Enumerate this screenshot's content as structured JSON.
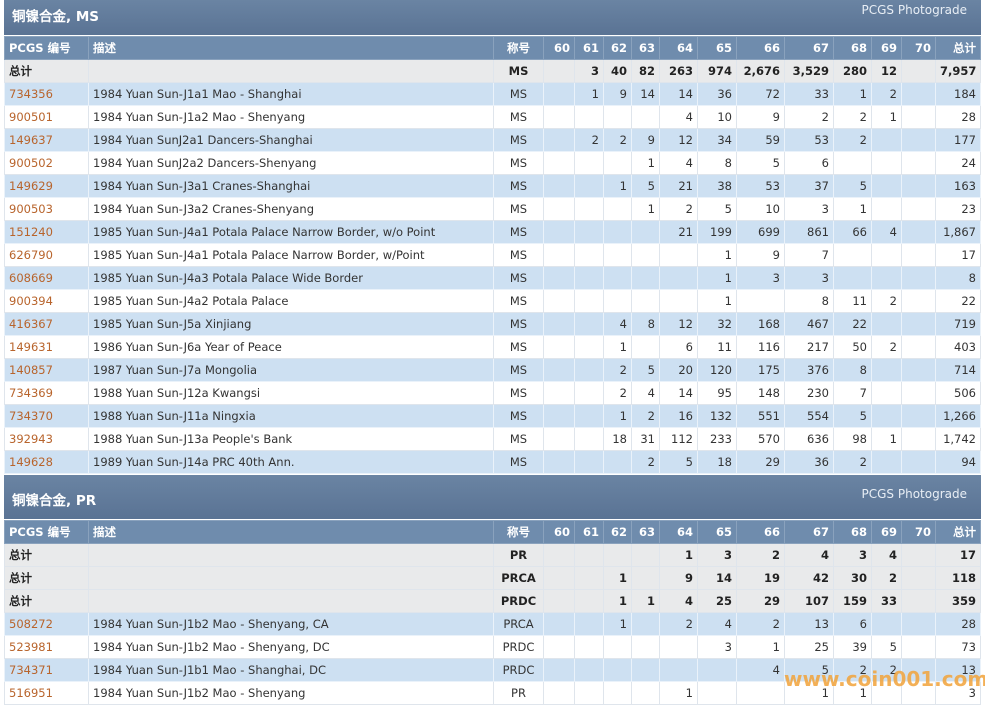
{
  "sections": [
    {
      "title": "铜镍合金, MS",
      "link": "PCGS Photograde",
      "header": [
        "PCGS 编号",
        "描述",
        "称号",
        "60",
        "61",
        "62",
        "63",
        "64",
        "65",
        "66",
        "67",
        "68",
        "69",
        "70",
        "总计"
      ],
      "totals": [
        [
          "总计",
          null,
          "MS",
          null,
          "3",
          "40",
          "82",
          "263",
          "974",
          "2,676",
          "3,529",
          "280",
          "12",
          null,
          "7,957"
        ]
      ],
      "rows": [
        [
          "734356",
          "1984 Yuan Sun-J1a1 Mao - Shanghai",
          "MS",
          null,
          "1",
          "9",
          "14",
          "14",
          "36",
          "72",
          "33",
          "1",
          "2",
          null,
          "184"
        ],
        [
          "900501",
          "1984 Yuan Sun-J1a2 Mao - Shenyang",
          "MS",
          null,
          null,
          null,
          null,
          "4",
          "10",
          "9",
          "2",
          "2",
          "1",
          null,
          "28"
        ],
        [
          "149637",
          "1984 Yuan SunJ2a1 Dancers-Shanghai",
          "MS",
          null,
          "2",
          "2",
          "9",
          "12",
          "34",
          "59",
          "53",
          "2",
          null,
          null,
          "177"
        ],
        [
          "900502",
          "1984 Yuan SunJ2a2 Dancers-Shenyang",
          "MS",
          null,
          null,
          null,
          "1",
          "4",
          "8",
          "5",
          "6",
          null,
          null,
          null,
          "24"
        ],
        [
          "149629",
          "1984 Yuan Sun-J3a1 Cranes-Shanghai",
          "MS",
          null,
          null,
          "1",
          "5",
          "21",
          "38",
          "53",
          "37",
          "5",
          null,
          null,
          "163"
        ],
        [
          "900503",
          "1984 Yuan Sun-J3a2 Cranes-Shenyang",
          "MS",
          null,
          null,
          null,
          "1",
          "2",
          "5",
          "10",
          "3",
          "1",
          null,
          null,
          "23"
        ],
        [
          "151240",
          "1985 Yuan Sun-J4a1 Potala Palace Narrow Border, w/o Point",
          "MS",
          null,
          null,
          null,
          null,
          "21",
          "199",
          "699",
          "861",
          "66",
          "4",
          null,
          "1,867"
        ],
        [
          "626790",
          "1985 Yuan Sun-J4a1 Potala Palace Narrow Border, w/Point",
          "MS",
          null,
          null,
          null,
          null,
          null,
          "1",
          "9",
          "7",
          null,
          null,
          null,
          "17"
        ],
        [
          "608669",
          "1985 Yuan Sun-J4a3 Potala Palace Wide Border",
          "MS",
          null,
          null,
          null,
          null,
          null,
          "1",
          "3",
          "3",
          null,
          null,
          null,
          "8"
        ],
        [
          "900394",
          "1985 Yuan Sun-J4a2 Potala Palace",
          "MS",
          null,
          null,
          null,
          null,
          null,
          "1",
          null,
          "8",
          "11",
          "2",
          null,
          "22"
        ],
        [
          "416367",
          "1985 Yuan Sun-J5a Xinjiang",
          "MS",
          null,
          null,
          "4",
          "8",
          "12",
          "32",
          "168",
          "467",
          "22",
          null,
          null,
          "719"
        ],
        [
          "149631",
          "1986 Yuan Sun-J6a Year of Peace",
          "MS",
          null,
          null,
          "1",
          null,
          "6",
          "11",
          "116",
          "217",
          "50",
          "2",
          null,
          "403"
        ],
        [
          "140857",
          "1987 Yuan Sun-J7a Mongolia",
          "MS",
          null,
          null,
          "2",
          "5",
          "20",
          "120",
          "175",
          "376",
          "8",
          null,
          null,
          "714"
        ],
        [
          "734369",
          "1988 Yuan Sun-J12a Kwangsi",
          "MS",
          null,
          null,
          "2",
          "4",
          "14",
          "95",
          "148",
          "230",
          "7",
          null,
          null,
          "506"
        ],
        [
          "734370",
          "1988 Yuan Sun-J11a Ningxia",
          "MS",
          null,
          null,
          "1",
          "2",
          "16",
          "132",
          "551",
          "554",
          "5",
          null,
          null,
          "1,266"
        ],
        [
          "392943",
          "1988 Yuan Sun-J13a People's Bank",
          "MS",
          null,
          null,
          "18",
          "31",
          "112",
          "233",
          "570",
          "636",
          "98",
          "1",
          null,
          "1,742"
        ],
        [
          "149628",
          "1989 Yuan Sun-J14a PRC 40th Ann.",
          "MS",
          null,
          null,
          null,
          "2",
          "5",
          "18",
          "29",
          "36",
          "2",
          null,
          null,
          "94"
        ]
      ]
    },
    {
      "title": "铜镍合金, PR",
      "link": "PCGS Photograde",
      "header": [
        "PCGS 编号",
        "描述",
        "称号",
        "60",
        "61",
        "62",
        "63",
        "64",
        "65",
        "66",
        "67",
        "68",
        "69",
        "70",
        "总计"
      ],
      "totals": [
        [
          "总计",
          null,
          "PR",
          null,
          null,
          null,
          null,
          "1",
          "3",
          "2",
          "4",
          "3",
          "4",
          null,
          "17"
        ],
        [
          "总计",
          null,
          "PRCA",
          null,
          null,
          "1",
          null,
          "9",
          "14",
          "19",
          "42",
          "30",
          "2",
          null,
          "118"
        ],
        [
          "总计",
          null,
          "PRDC",
          null,
          null,
          "1",
          "1",
          "4",
          "25",
          "29",
          "107",
          "159",
          "33",
          null,
          "359"
        ]
      ],
      "rows": [
        [
          "508272",
          "1984 Yuan Sun-J1b2 Mao - Shenyang, CA",
          "PRCA",
          null,
          null,
          "1",
          null,
          "2",
          "4",
          "2",
          "13",
          "6",
          null,
          null,
          "28"
        ],
        [
          "523981",
          "1984 Yuan Sun-J1b2 Mao - Shenyang, DC",
          "PRDC",
          null,
          null,
          null,
          null,
          null,
          "3",
          "1",
          "25",
          "39",
          "5",
          null,
          "73"
        ],
        [
          "734371",
          "1984 Yuan Sun-J1b1 Mao - Shanghai, DC",
          "PRDC",
          null,
          null,
          null,
          null,
          null,
          null,
          "4",
          "5",
          "2",
          "2",
          null,
          "13"
        ],
        [
          "516951",
          "1984 Yuan Sun-J1b2 Mao - Shenyang",
          "PR",
          null,
          null,
          null,
          null,
          "1",
          null,
          null,
          "1",
          "1",
          null,
          null,
          "3"
        ]
      ]
    }
  ],
  "watermark": "www.coin001.com"
}
